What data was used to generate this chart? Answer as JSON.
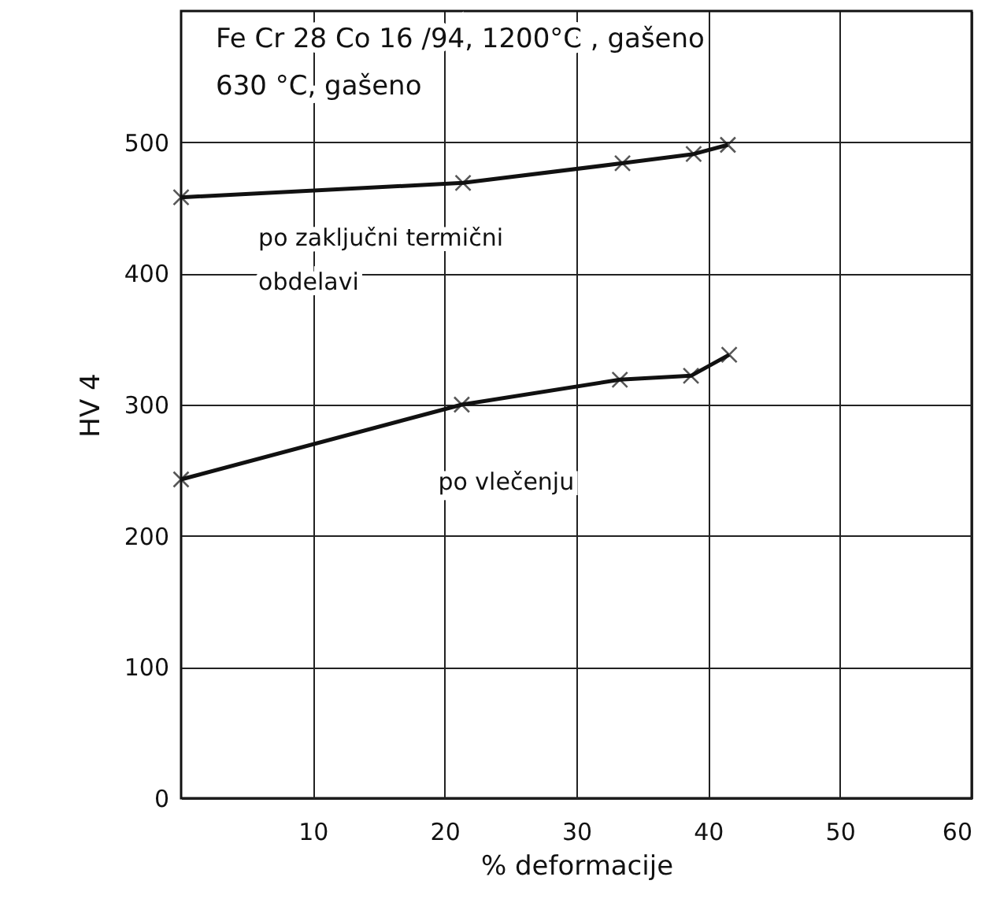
{
  "chart_data": {
    "type": "line",
    "title": "Fe Cr  28  Co 16 /94, 1200°C , gašeno",
    "subtitle": "630 °C, gašeno",
    "xlabel": "% deformacije",
    "ylabel": "HV 4",
    "xlim": [
      0,
      60
    ],
    "xticks": [
      10,
      20,
      30,
      40,
      50,
      60
    ],
    "ylim": [
      0,
      600
    ],
    "yticks": [
      0,
      100,
      200,
      300,
      400,
      500
    ],
    "grid": true,
    "marker": "cross",
    "series": [
      {
        "name": "po zaključni termični\nobdelavi",
        "color": "#111111",
        "x": [
          0,
          21.4,
          33.5,
          38.9,
          41.5
        ],
        "values": [
          458,
          469,
          484,
          491,
          498
        ]
      },
      {
        "name": "po vlečenju",
        "color": "#111111",
        "x": [
          0,
          21.3,
          33.3,
          38.7,
          41.6
        ],
        "values": [
          243,
          300,
          319,
          322,
          338
        ]
      }
    ]
  }
}
